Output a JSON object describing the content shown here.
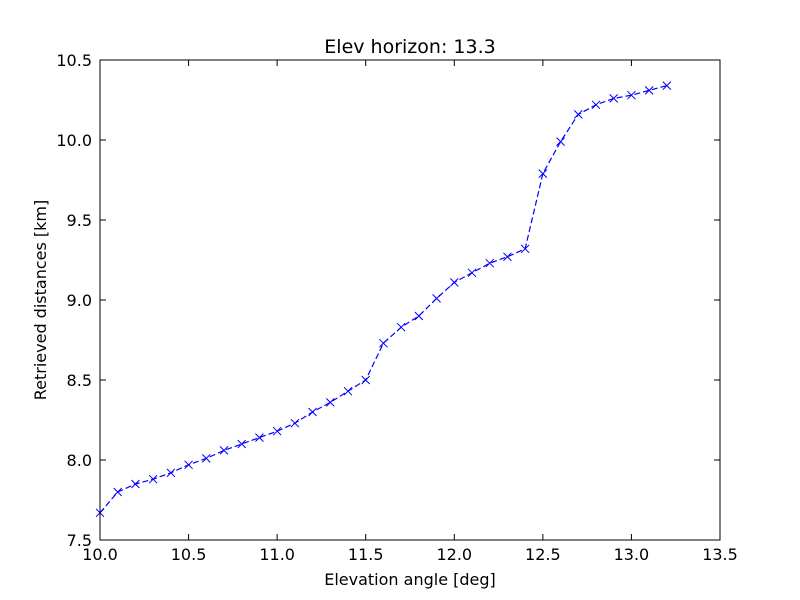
{
  "chart_data": {
    "type": "line",
    "title": "Elev horizon: 13.3",
    "xlabel": "Elevation angle [deg]",
    "ylabel": "Retrieved distances [km]",
    "xlim": [
      10.0,
      13.5
    ],
    "ylim": [
      7.5,
      10.5
    ],
    "xticks": [
      "10.0",
      "10.5",
      "11.0",
      "11.5",
      "12.0",
      "12.5",
      "13.0",
      "13.5"
    ],
    "yticks": [
      "7.5",
      "8.0",
      "8.5",
      "9.0",
      "9.5",
      "10.0",
      "10.5"
    ],
    "grid": false,
    "series": [
      {
        "color": "#0000ff",
        "line_style": "dashed",
        "marker": "x",
        "x": [
          10.0,
          10.1,
          10.2,
          10.3,
          10.4,
          10.5,
          10.6,
          10.7,
          10.8,
          10.9,
          11.0,
          11.1,
          11.2,
          11.3,
          11.4,
          11.5,
          11.6,
          11.7,
          11.8,
          11.9,
          12.0,
          12.1,
          12.2,
          12.3,
          12.4,
          12.5,
          12.6,
          12.7,
          12.8,
          12.9,
          13.0,
          13.1,
          13.2
        ],
        "y": [
          7.67,
          7.8,
          7.85,
          7.88,
          7.92,
          7.97,
          8.01,
          8.06,
          8.1,
          8.14,
          8.18,
          8.23,
          8.3,
          8.36,
          8.43,
          8.5,
          8.73,
          8.83,
          8.9,
          9.01,
          9.11,
          9.17,
          9.23,
          9.27,
          9.32,
          9.79,
          9.99,
          10.16,
          10.22,
          10.26,
          10.28,
          10.31,
          10.34
        ]
      }
    ]
  }
}
